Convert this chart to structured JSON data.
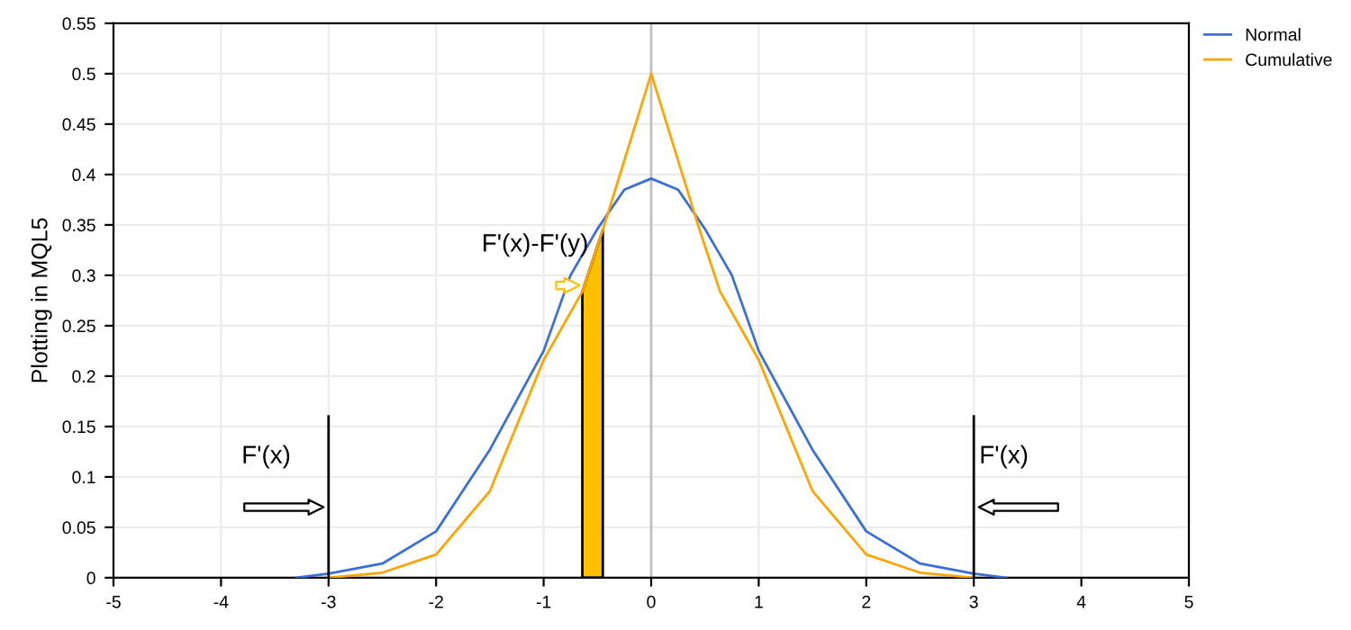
{
  "chart_data": {
    "type": "line",
    "ylabel": "Plotting in MQL5",
    "xlim": [
      -5,
      5
    ],
    "ylim": [
      0,
      0.55
    ],
    "xticks": [
      -5,
      -4,
      -3,
      -2,
      -1,
      0,
      1,
      2,
      3,
      4,
      5
    ],
    "yticks": [
      0,
      0.05,
      0.1,
      0.15,
      0.2,
      0.25,
      0.3,
      0.35,
      0.4,
      0.45,
      0.5,
      0.55
    ],
    "grid": true,
    "legend": "top right",
    "marker": "none",
    "line_style": "solid",
    "series": [
      {
        "name": "Normal",
        "color": "#3a6fd8",
        "x": [
          -3.3,
          -3,
          -2.5,
          -2,
          -1.5,
          -1,
          -0.75,
          -0.5,
          -0.25,
          0,
          0.25,
          0.5,
          0.75,
          1,
          1.5,
          2,
          2.5,
          3,
          3.3
        ],
        "values": [
          0,
          0.004,
          0.014,
          0.046,
          0.127,
          0.225,
          0.3,
          0.346,
          0.385,
          0.396,
          0.385,
          0.346,
          0.3,
          0.225,
          0.127,
          0.046,
          0.014,
          0.004,
          0
        ]
      },
      {
        "name": "Cumulative",
        "color": "#ffa500",
        "x": [
          -3,
          -2.5,
          -2,
          -1.5,
          -1,
          -0.64,
          -0.45,
          0,
          0.45,
          0.64,
          1,
          1.5,
          2,
          2.5,
          3
        ],
        "values": [
          0,
          0.005,
          0.023,
          0.086,
          0.216,
          0.284,
          0.345,
          0.5,
          0.345,
          0.284,
          0.216,
          0.086,
          0.023,
          0.005,
          0
        ]
      },
      {
        "type": "area",
        "color": "#ffc000",
        "x": [
          -0.64,
          -0.45
        ],
        "values": [
          0.284,
          0.345
        ]
      },
      {
        "color": "#000000",
        "x": [
          -3,
          -3
        ],
        "values": [
          0,
          0.16
        ]
      },
      {
        "color": "#000000",
        "x": [
          3,
          3
        ],
        "values": [
          0,
          0.16
        ]
      }
    ],
    "ref_lines": [
      {
        "axis": "x",
        "value": 0,
        "color": "#c0c0c0"
      }
    ],
    "annotations": [
      {
        "text": "F'(x)",
        "x": -3,
        "y": 0.07
      },
      {
        "text": "F'(x)",
        "x": 3,
        "y": 0.07
      },
      {
        "text": "F'(x)-F'(y)",
        "x": -0.62,
        "y": 0.29
      }
    ]
  }
}
